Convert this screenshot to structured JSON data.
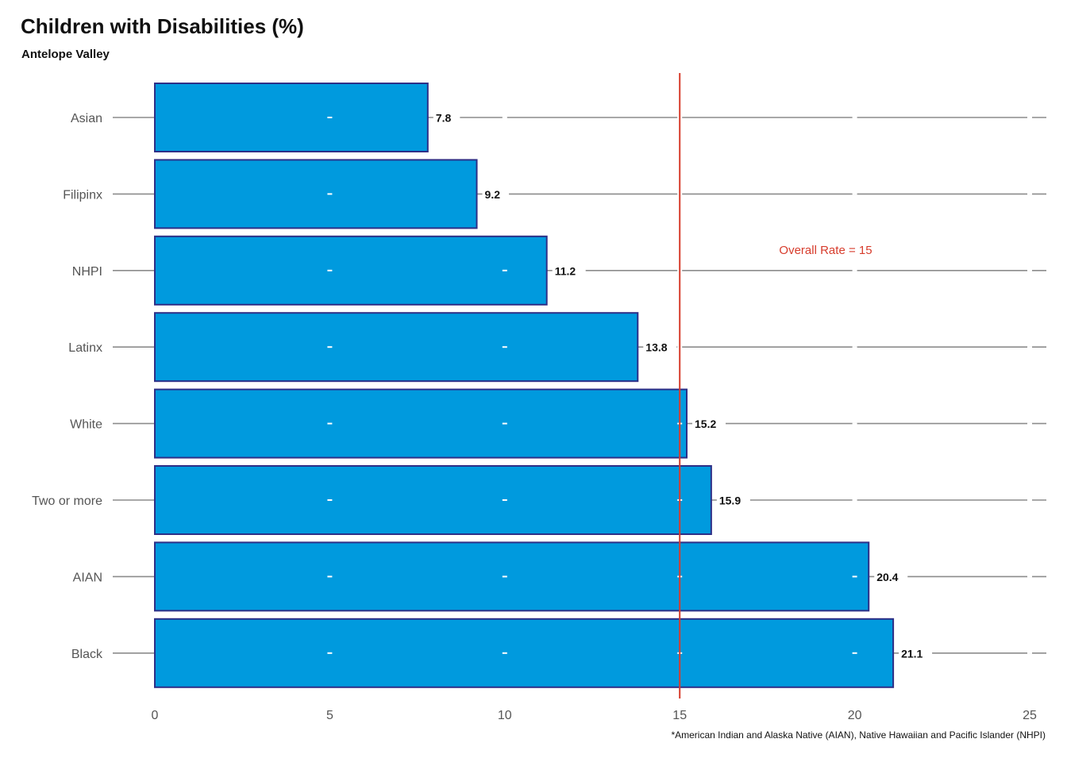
{
  "chart_data": {
    "type": "bar",
    "orientation": "horizontal",
    "title": "Children with Disabilities (%)",
    "subtitle": "Antelope Valley",
    "categories": [
      "Asian",
      "Filipinx",
      "NHPI",
      "Latinx",
      "White",
      "Two or more",
      "AIAN",
      "Black"
    ],
    "values": [
      7.8,
      9.2,
      11.2,
      13.8,
      15.2,
      15.9,
      20.4,
      21.1
    ],
    "value_labels": [
      "7.8",
      "9.2",
      "11.2",
      "13.8",
      "15.2",
      "15.9",
      "20.4",
      "21.1"
    ],
    "xlim": [
      0,
      25
    ],
    "xticks": [
      0,
      5,
      10,
      15,
      20,
      25
    ],
    "xtick_labels": [
      "0",
      "5",
      "10",
      "15",
      "20",
      "25"
    ],
    "xlabel": "",
    "ylabel": "",
    "reference_line": {
      "value": 15,
      "label": "Overall Rate = 15"
    },
    "footnote": "*American Indian and Alaska Native (AIAN), Native Hawaiian and Pacific Islander (NHPI)",
    "colors": {
      "bar_fill": "#009ADE",
      "bar_stroke": "#2E2F87",
      "reference_line": "#D73C2C",
      "grid": "#8C8C8C",
      "axis_text": "#555555",
      "value_text": "#111111"
    }
  }
}
